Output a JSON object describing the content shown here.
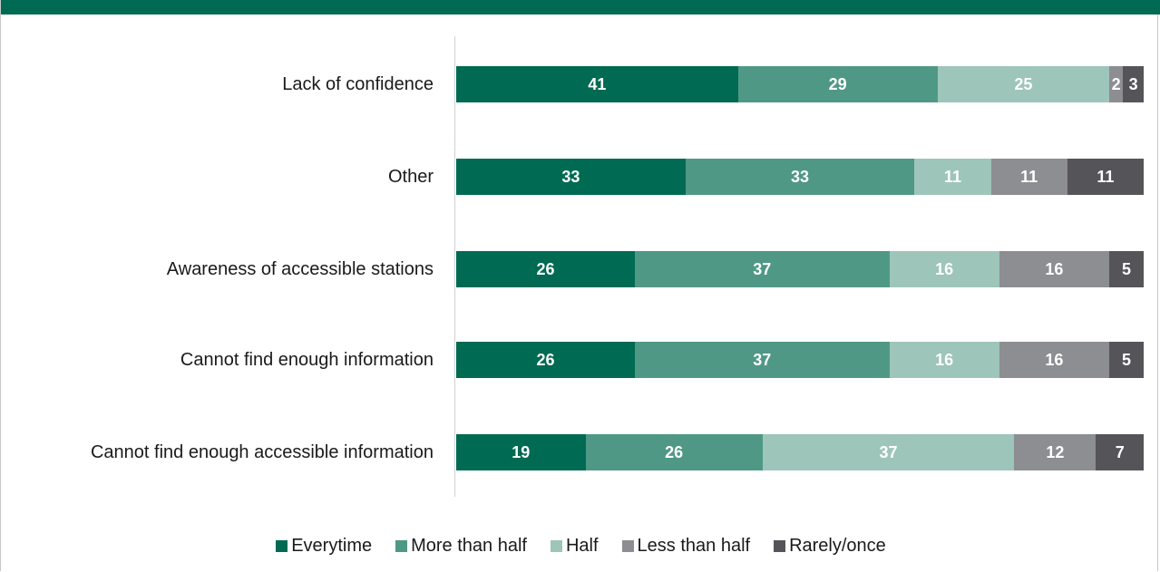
{
  "colors": {
    "topbar": "#006a52",
    "series": [
      "#006a52",
      "#4f9886",
      "#9ec5b9",
      "#8c8e91",
      "#555459"
    ]
  },
  "chart_data": {
    "type": "bar",
    "orientation": "horizontal",
    "stacked": true,
    "categories": [
      "Lack of confidence",
      "Other",
      "Awareness of accessible stations",
      "Cannot find enough information",
      "Cannot find enough accessible information"
    ],
    "series": [
      {
        "name": "Everytime",
        "values": [
          41,
          33,
          26,
          26,
          19
        ]
      },
      {
        "name": "More than half",
        "values": [
          29,
          33,
          37,
          37,
          26
        ]
      },
      {
        "name": "Half",
        "values": [
          25,
          11,
          16,
          16,
          37
        ]
      },
      {
        "name": "Less than half",
        "values": [
          2,
          11,
          16,
          16,
          12
        ]
      },
      {
        "name": "Rarely/once",
        "values": [
          3,
          11,
          5,
          5,
          7
        ]
      }
    ],
    "xlim": [
      0,
      100
    ],
    "legend": "bottom",
    "grid": false
  }
}
